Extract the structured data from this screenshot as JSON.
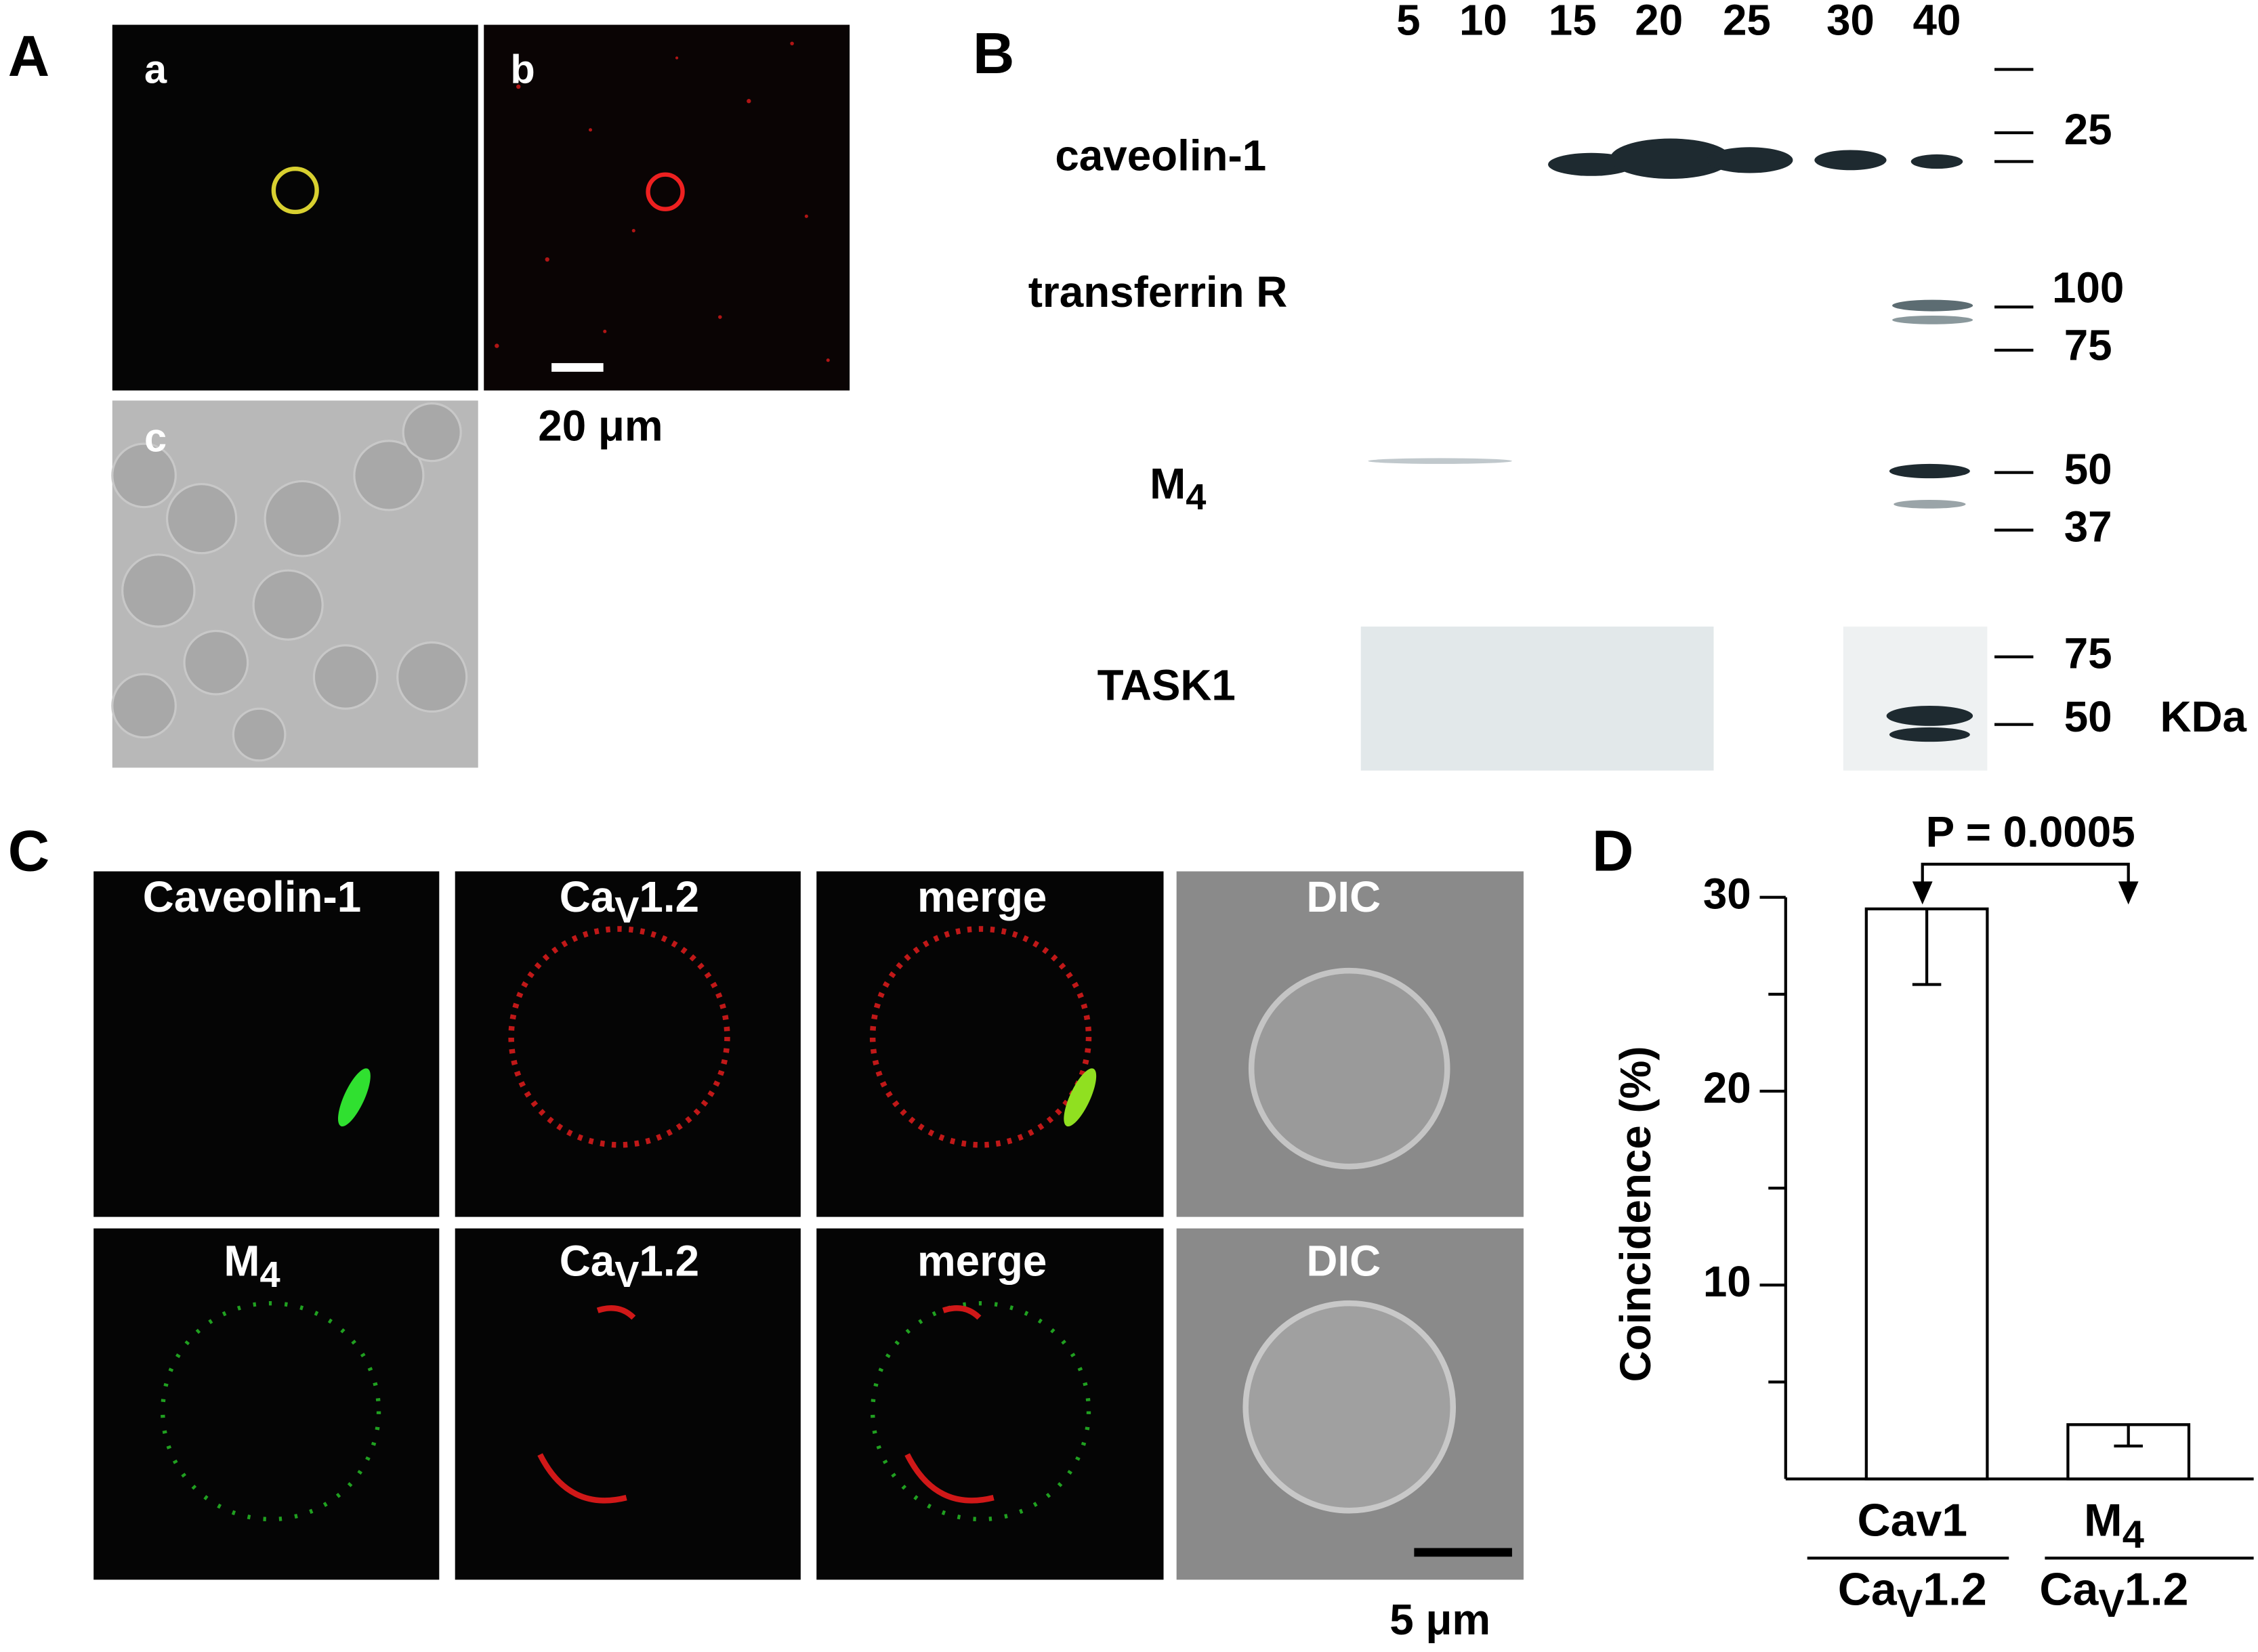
{
  "figure": {
    "A": {
      "label": "A",
      "images": [
        "a",
        "b",
        "c"
      ],
      "scale_bar": "20 μm"
    },
    "B": {
      "label": "B",
      "lanes": [
        5,
        10,
        15,
        20,
        25,
        30,
        40
      ],
      "blots": [
        {
          "main": "caveolin-1"
        },
        {
          "main": "transferrin R"
        },
        {
          "main": "M",
          "sub": "4"
        },
        {
          "main": "TASK1"
        }
      ],
      "markers": [
        25,
        100,
        75,
        50,
        37,
        75,
        50
      ],
      "marker_unit": "KDa"
    },
    "C": {
      "label": "C",
      "rows": [
        [
          {
            "main": "Caveolin-1"
          },
          {
            "main": "Ca",
            "sub": "V",
            "rest": "1.2"
          },
          {
            "main": "merge"
          },
          {
            "main": "DIC"
          }
        ],
        [
          {
            "main": "M",
            "sub": "4"
          },
          {
            "main": "Ca",
            "sub": "V",
            "rest": "1.2"
          },
          {
            "main": "merge"
          },
          {
            "main": "DIC"
          }
        ]
      ],
      "scale_bar": "5 μm"
    }
  },
  "chart_data": {
    "type": "bar",
    "panel": "D",
    "categories": [
      {
        "main": "Cav1"
      },
      {
        "main": "M",
        "sub": "4"
      }
    ],
    "category_denominators": [
      {
        "main": "Ca",
        "sub": "V",
        "rest": "1.2"
      },
      {
        "main": "Ca",
        "sub": "V",
        "rest": "1.2"
      }
    ],
    "values": [
      29.4,
      2.8
    ],
    "errors": [
      3.9,
      1.1
    ],
    "color": "#ffffff",
    "ylabel": "Coincidence (%)",
    "ylim": [
      0,
      30
    ],
    "yticks": [
      10,
      20,
      30
    ],
    "minor_yticks": [
      5,
      15,
      25
    ],
    "annotation": "P = 0.0005"
  }
}
